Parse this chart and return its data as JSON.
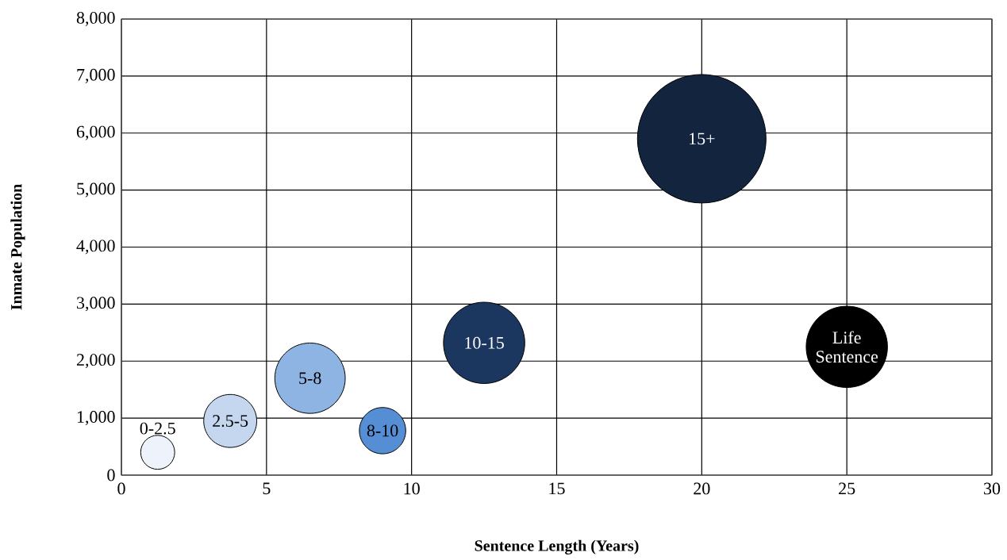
{
  "chart_data": {
    "type": "bubble",
    "xlabel": "Sentence Length (Years)",
    "ylabel": "Inmate Population",
    "xlim": [
      0,
      30
    ],
    "xticks": [
      0,
      5,
      10,
      15,
      20,
      25,
      30
    ],
    "ylim": [
      0,
      8000
    ],
    "yticks": [
      0,
      {
        "value": 1000,
        "label": "1,000"
      },
      {
        "value": 2000,
        "label": "2,000"
      },
      {
        "value": 3000,
        "label": "3,000"
      },
      {
        "value": 4000,
        "label": "4,000"
      },
      {
        "value": 5000,
        "label": "5,000"
      },
      {
        "value": 6000,
        "label": "6,000"
      },
      {
        "value": 7000,
        "label": "7,000"
      },
      {
        "value": 8000,
        "label": "8,000"
      }
    ],
    "grid": true,
    "x": [
      1.25,
      3.75,
      6.5,
      9,
      12.5,
      20,
      25
    ],
    "values": [
      400,
      950,
      1700,
      780,
      2320,
      5900,
      2250
    ],
    "sizes": [
      0.07,
      0.17,
      0.3,
      0.13,
      0.4,
      1,
      0.4
    ],
    "colors": [
      "#eef2fa",
      "#c5d7ef",
      "#8eb4e3",
      "#558ed5",
      "#1b3760",
      "#13243f",
      "#000000"
    ],
    "value_labels": [
      "0-2.5",
      "2.5-5",
      "5-8",
      "8-10",
      "10-15",
      "15+",
      "Life Sentence"
    ]
  }
}
